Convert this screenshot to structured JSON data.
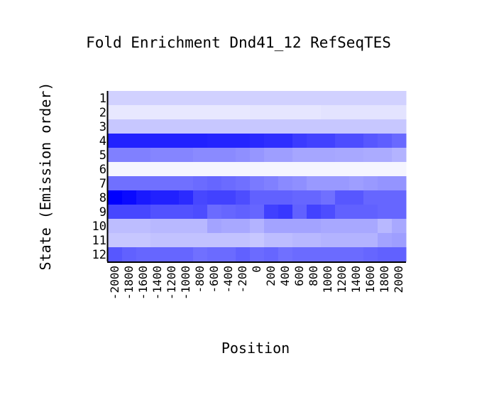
{
  "chart_data": {
    "type": "heatmap",
    "title": "Fold Enrichment Dnd41_12 RefSeqTES",
    "xlabel": "Position",
    "ylabel": "State (Emission order)",
    "x": [
      "-2000",
      "-1800",
      "-1600",
      "-1400",
      "-1200",
      "-1000",
      "-800",
      "-600",
      "-400",
      "-200",
      "0",
      "200",
      "400",
      "600",
      "800",
      "1000",
      "1200",
      "1400",
      "1600",
      "1800",
      "2000"
    ],
    "y": [
      "1",
      "2",
      "3",
      "4",
      "5",
      "6",
      "7",
      "8",
      "9",
      "10",
      "11",
      "12"
    ],
    "color_low": "#ffffff",
    "color_high": "#0000ff",
    "values": [
      [
        0.18,
        0.18,
        0.18,
        0.18,
        0.18,
        0.18,
        0.18,
        0.18,
        0.18,
        0.18,
        0.18,
        0.18,
        0.18,
        0.18,
        0.18,
        0.18,
        0.18,
        0.18,
        0.18,
        0.18,
        0.18
      ],
      [
        0.09,
        0.09,
        0.09,
        0.09,
        0.09,
        0.09,
        0.09,
        0.09,
        0.09,
        0.09,
        0.1,
        0.1,
        0.1,
        0.1,
        0.1,
        0.11,
        0.11,
        0.11,
        0.11,
        0.11,
        0.11
      ],
      [
        0.22,
        0.22,
        0.22,
        0.22,
        0.22,
        0.22,
        0.22,
        0.22,
        0.22,
        0.22,
        0.22,
        0.22,
        0.22,
        0.22,
        0.22,
        0.22,
        0.22,
        0.22,
        0.22,
        0.22,
        0.22
      ],
      [
        0.87,
        0.87,
        0.87,
        0.87,
        0.87,
        0.87,
        0.87,
        0.86,
        0.86,
        0.86,
        0.84,
        0.82,
        0.82,
        0.77,
        0.74,
        0.74,
        0.7,
        0.7,
        0.66,
        0.63,
        0.59
      ],
      [
        0.5,
        0.5,
        0.5,
        0.48,
        0.48,
        0.48,
        0.46,
        0.46,
        0.46,
        0.44,
        0.41,
        0.38,
        0.38,
        0.35,
        0.35,
        0.35,
        0.34,
        0.34,
        0.33,
        0.33,
        0.3
      ],
      [
        0.04,
        0.04,
        0.04,
        0.04,
        0.04,
        0.04,
        0.04,
        0.04,
        0.04,
        0.04,
        0.04,
        0.04,
        0.04,
        0.04,
        0.04,
        0.04,
        0.04,
        0.04,
        0.04,
        0.04,
        0.04
      ],
      [
        0.56,
        0.56,
        0.56,
        0.56,
        0.56,
        0.56,
        0.58,
        0.6,
        0.58,
        0.56,
        0.52,
        0.5,
        0.46,
        0.44,
        0.4,
        0.4,
        0.4,
        0.38,
        0.4,
        0.42,
        0.42
      ],
      [
        1.0,
        0.96,
        0.9,
        0.87,
        0.87,
        0.83,
        0.72,
        0.74,
        0.74,
        0.7,
        0.62,
        0.62,
        0.62,
        0.6,
        0.6,
        0.56,
        0.66,
        0.66,
        0.6,
        0.6,
        0.6
      ],
      [
        0.72,
        0.72,
        0.72,
        0.68,
        0.68,
        0.68,
        0.7,
        0.58,
        0.6,
        0.62,
        0.6,
        0.75,
        0.78,
        0.62,
        0.74,
        0.7,
        0.62,
        0.62,
        0.62,
        0.6,
        0.6
      ],
      [
        0.26,
        0.26,
        0.26,
        0.28,
        0.28,
        0.28,
        0.28,
        0.36,
        0.34,
        0.34,
        0.3,
        0.36,
        0.36,
        0.36,
        0.36,
        0.34,
        0.34,
        0.34,
        0.34,
        0.28,
        0.34
      ],
      [
        0.22,
        0.22,
        0.22,
        0.24,
        0.24,
        0.24,
        0.24,
        0.24,
        0.24,
        0.24,
        0.22,
        0.26,
        0.26,
        0.28,
        0.28,
        0.3,
        0.3,
        0.3,
        0.3,
        0.36,
        0.38
      ],
      [
        0.66,
        0.62,
        0.6,
        0.6,
        0.6,
        0.6,
        0.56,
        0.58,
        0.58,
        0.62,
        0.58,
        0.6,
        0.56,
        0.58,
        0.58,
        0.58,
        0.58,
        0.58,
        0.6,
        0.62,
        0.62
      ]
    ]
  }
}
